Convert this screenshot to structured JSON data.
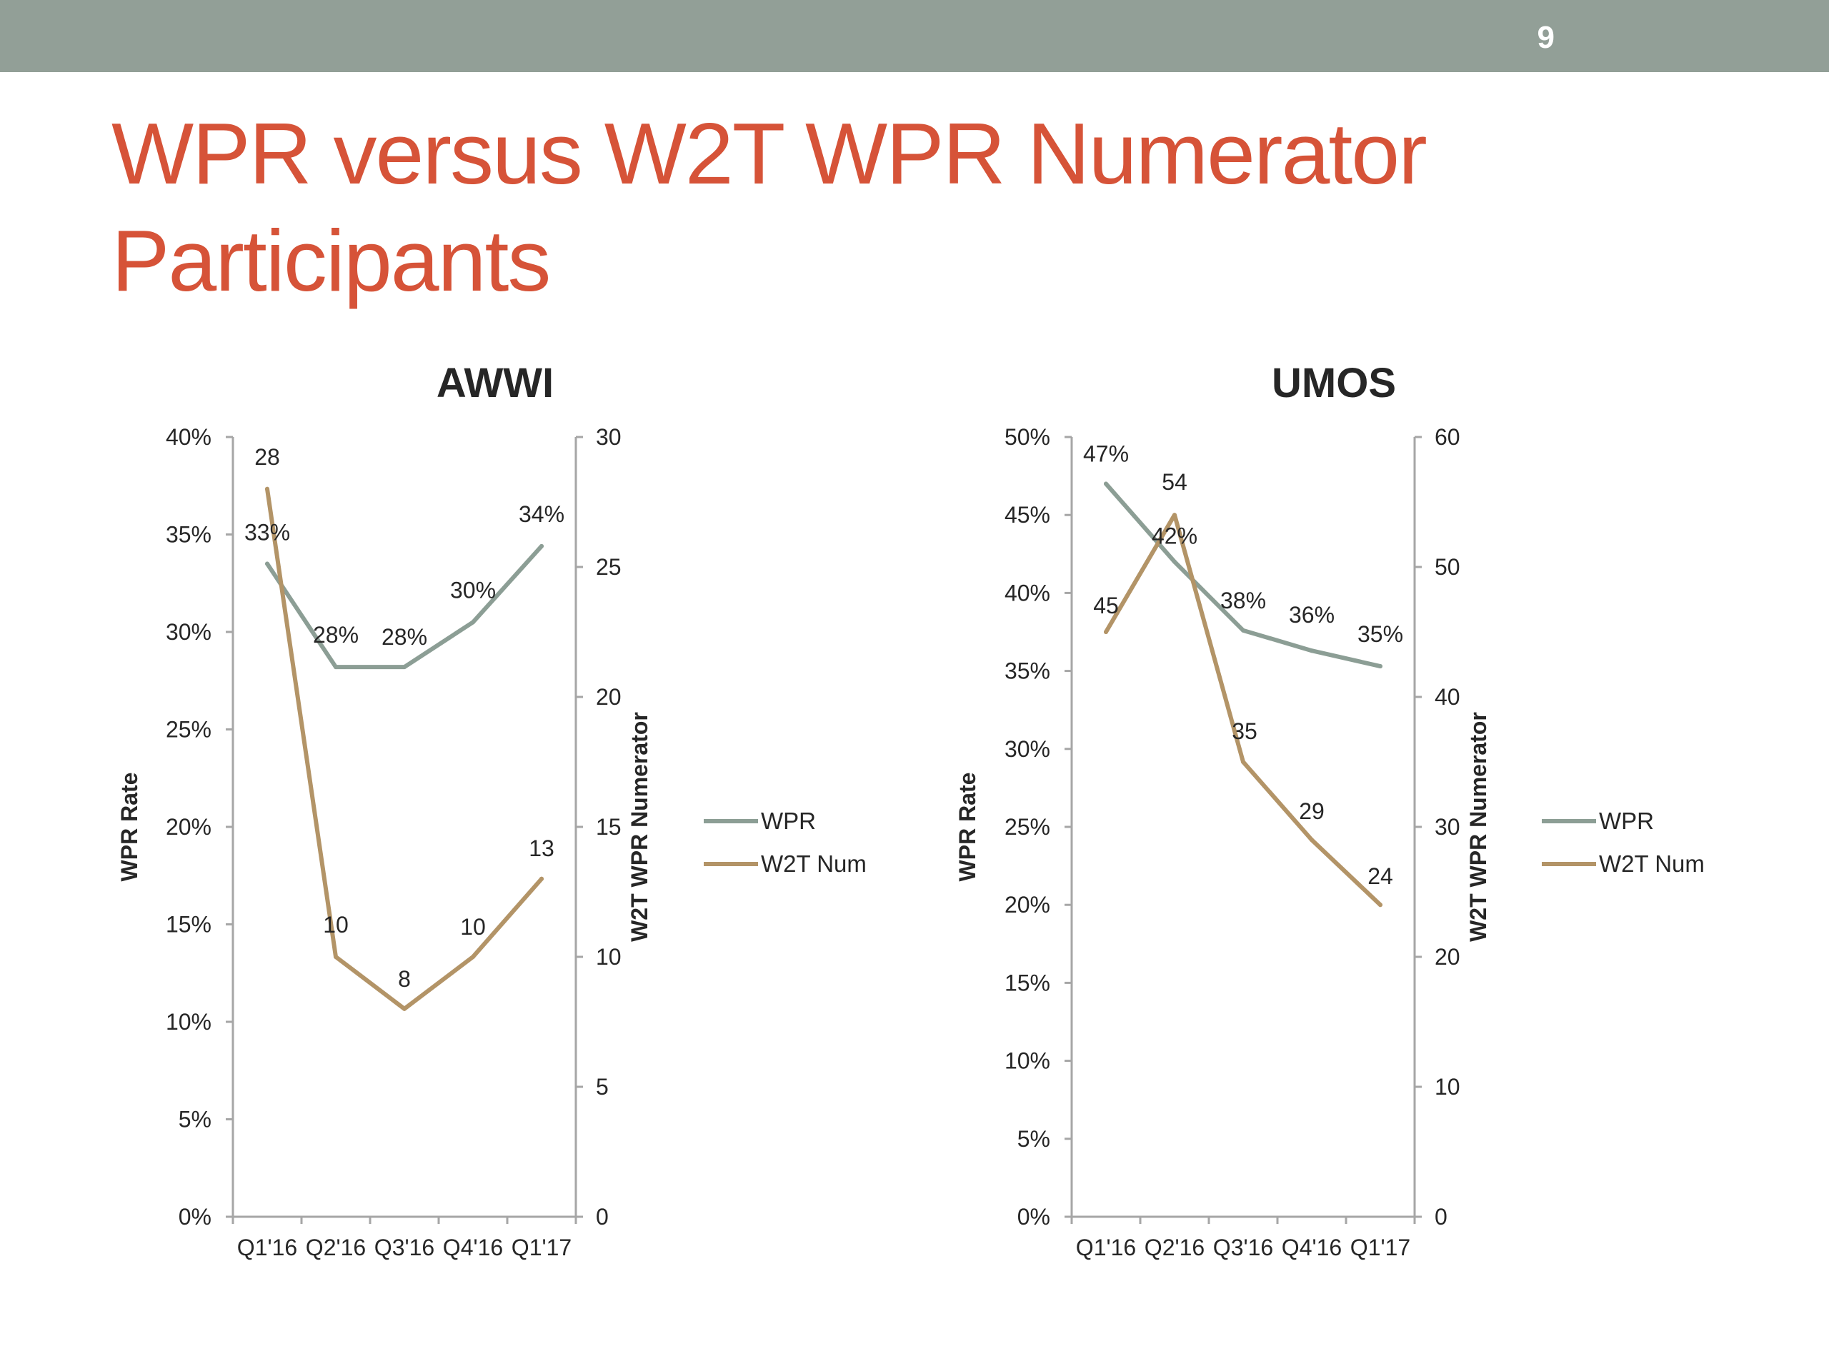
{
  "slide": {
    "page_number": "9",
    "title": "WPR versus W2T WPR Numerator Participants"
  },
  "colors": {
    "header_bar": "#929f97",
    "title": "#d65338",
    "wpr_line": "#8c9e95",
    "w2t_line": "#b39467",
    "axis": "#a6a6a6",
    "text": "#262626"
  },
  "chart_data": [
    {
      "type": "line",
      "title": "AWWI",
      "categories": [
        "Q1'16",
        "Q2'16",
        "Q3'16",
        "Q4'16",
        "Q1'17"
      ],
      "ylabel": "WPR Rate",
      "y2label": "W2T WPR Numerator",
      "ylim": [
        0,
        0.4
      ],
      "y_ticks": [
        "0%",
        "5%",
        "10%",
        "15%",
        "20%",
        "25%",
        "30%",
        "35%",
        "40%"
      ],
      "y2lim": [
        0,
        30
      ],
      "y2_ticks": [
        "0",
        "5",
        "10",
        "15",
        "20",
        "25",
        "30"
      ],
      "grid": false,
      "legend_position": "right",
      "series": [
        {
          "name": "WPR",
          "axis": "left",
          "values": [
            0.335,
            0.282,
            0.282,
            0.305,
            0.344
          ],
          "labels": [
            "33%",
            "28%",
            "28%",
            "30%",
            "34%"
          ]
        },
        {
          "name": "W2T Num",
          "axis": "right",
          "values": [
            28,
            10,
            8,
            10,
            13
          ],
          "labels": [
            "28",
            "10",
            "8",
            "10",
            "13"
          ]
        }
      ]
    },
    {
      "type": "line",
      "title": "UMOS",
      "categories": [
        "Q1'16",
        "Q2'16",
        "Q3'16",
        "Q4'16",
        "Q1'17"
      ],
      "ylabel": "WPR Rate",
      "y2label": "W2T WPR Numerator",
      "ylim": [
        0,
        0.5
      ],
      "y_ticks": [
        "0%",
        "5%",
        "10%",
        "15%",
        "20%",
        "25%",
        "30%",
        "35%",
        "40%",
        "45%",
        "50%"
      ],
      "y2lim": [
        0,
        60
      ],
      "y2_ticks": [
        "0",
        "10",
        "20",
        "30",
        "40",
        "50",
        "60"
      ],
      "grid": false,
      "legend_position": "right",
      "series": [
        {
          "name": "WPR",
          "axis": "left",
          "values": [
            0.47,
            0.42,
            0.376,
            0.363,
            0.353
          ],
          "labels": [
            "47%",
            "42%",
            "38%",
            "36%",
            "35%"
          ]
        },
        {
          "name": "W2T Num",
          "axis": "right",
          "values": [
            45,
            54,
            35,
            29,
            24
          ],
          "labels": [
            "45",
            "54",
            "35",
            "29",
            "24"
          ]
        }
      ]
    }
  ]
}
